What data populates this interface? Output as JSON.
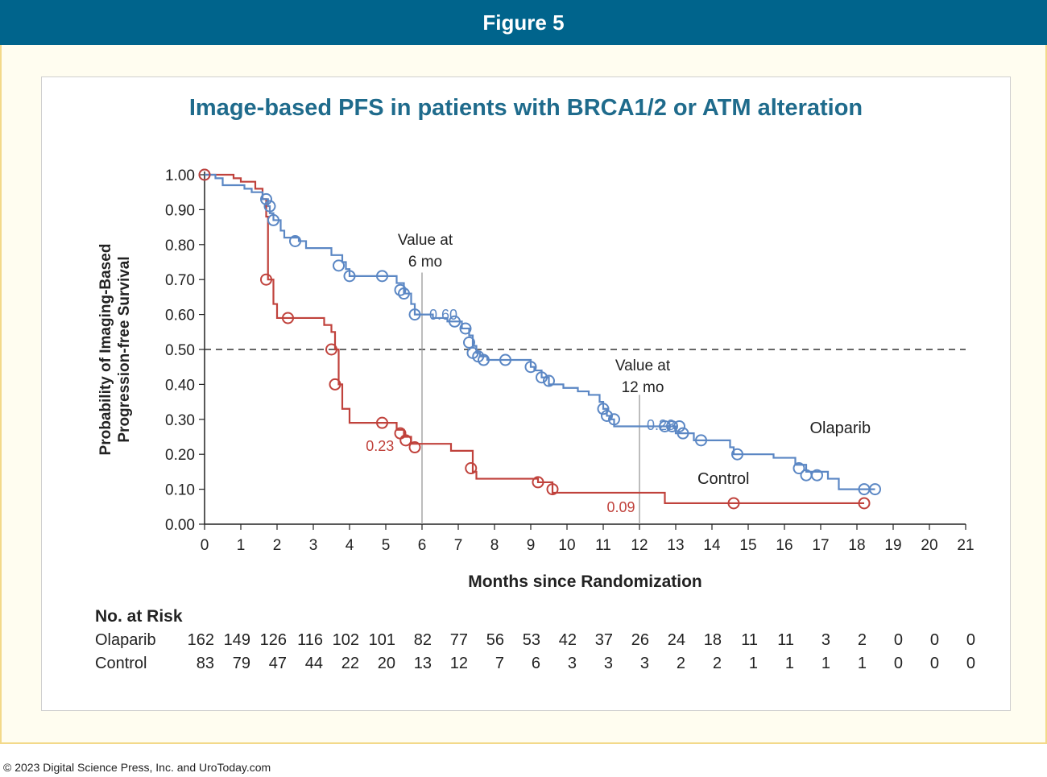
{
  "header": {
    "title": "Figure 5"
  },
  "footer": {
    "copyright": "© 2023 Digital Science Press, Inc. and UroToday.com"
  },
  "chart_data": {
    "type": "line",
    "subtype": "kaplan-meier step",
    "title": "Image-based PFS in patients with BRCA1/2 or ATM alteration",
    "xlabel": "Months since Randomization",
    "ylabel_lines": [
      "Probability of Imaging-Based",
      "Progression-free Survival"
    ],
    "xlim": [
      0,
      21
    ],
    "ylim": [
      0,
      1
    ],
    "xticks": [
      0,
      1,
      2,
      3,
      4,
      5,
      6,
      7,
      8,
      9,
      10,
      11,
      12,
      13,
      14,
      15,
      16,
      17,
      18,
      19,
      20,
      21
    ],
    "yticks": [
      {
        "value": 0.0,
        "label": "0.00"
      },
      {
        "value": 0.1,
        "label": "0.10"
      },
      {
        "value": 0.2,
        "label": "0.20"
      },
      {
        "value": 0.3,
        "label": "0.30"
      },
      {
        "value": 0.4,
        "label": "0.40"
      },
      {
        "value": 0.5,
        "label": "0.50"
      },
      {
        "value": 0.6,
        "label": "0.60"
      },
      {
        "value": 0.7,
        "label": "0.70"
      },
      {
        "value": 0.8,
        "label": "0.80"
      },
      {
        "value": 0.9,
        "label": "0.90"
      },
      {
        "value": 1.0,
        "label": "1.00"
      }
    ],
    "reference_line": {
      "y": 0.5,
      "style": "dashed"
    },
    "series": [
      {
        "name": "Olaparib",
        "color": "#5b87c4",
        "steps": [
          [
            0,
            1.0
          ],
          [
            0.3,
            0.99
          ],
          [
            0.5,
            0.97
          ],
          [
            1.1,
            0.96
          ],
          [
            1.3,
            0.95
          ],
          [
            1.6,
            0.93
          ],
          [
            1.75,
            0.91
          ],
          [
            1.8,
            0.89
          ],
          [
            1.9,
            0.87
          ],
          [
            2.1,
            0.84
          ],
          [
            2.2,
            0.82
          ],
          [
            2.6,
            0.81
          ],
          [
            2.8,
            0.79
          ],
          [
            3.5,
            0.77
          ],
          [
            3.8,
            0.75
          ],
          [
            3.9,
            0.73
          ],
          [
            4.0,
            0.71
          ],
          [
            5.3,
            0.69
          ],
          [
            5.5,
            0.66
          ],
          [
            5.7,
            0.63
          ],
          [
            5.8,
            0.6
          ],
          [
            6.3,
            0.59
          ],
          [
            6.7,
            0.58
          ],
          [
            7.1,
            0.56
          ],
          [
            7.3,
            0.54
          ],
          [
            7.4,
            0.51
          ],
          [
            7.5,
            0.49
          ],
          [
            7.6,
            0.48
          ],
          [
            7.8,
            0.47
          ],
          [
            9.0,
            0.45
          ],
          [
            9.1,
            0.44
          ],
          [
            9.3,
            0.42
          ],
          [
            9.5,
            0.4
          ],
          [
            9.9,
            0.39
          ],
          [
            10.3,
            0.38
          ],
          [
            10.6,
            0.37
          ],
          [
            10.9,
            0.35
          ],
          [
            11.0,
            0.33
          ],
          [
            11.1,
            0.31
          ],
          [
            11.2,
            0.3
          ],
          [
            11.3,
            0.28
          ],
          [
            12.7,
            0.28
          ],
          [
            13.0,
            0.26
          ],
          [
            13.5,
            0.24
          ],
          [
            14.5,
            0.22
          ],
          [
            14.6,
            0.2
          ],
          [
            15.7,
            0.19
          ],
          [
            16.3,
            0.17
          ],
          [
            16.6,
            0.15
          ],
          [
            17.2,
            0.13
          ],
          [
            17.5,
            0.1
          ],
          [
            18.5,
            0.1
          ]
        ],
        "censors": [
          [
            0,
            1.0
          ],
          [
            1.7,
            0.93
          ],
          [
            1.8,
            0.91
          ],
          [
            1.9,
            0.87
          ],
          [
            2.5,
            0.81
          ],
          [
            3.7,
            0.74
          ],
          [
            4.0,
            0.71
          ],
          [
            4.9,
            0.71
          ],
          [
            5.4,
            0.67
          ],
          [
            5.5,
            0.66
          ],
          [
            5.8,
            0.6
          ],
          [
            6.9,
            0.58
          ],
          [
            7.2,
            0.56
          ],
          [
            7.3,
            0.52
          ],
          [
            7.4,
            0.49
          ],
          [
            7.55,
            0.48
          ],
          [
            7.7,
            0.47
          ],
          [
            8.3,
            0.47
          ],
          [
            9.0,
            0.45
          ],
          [
            9.3,
            0.42
          ],
          [
            9.5,
            0.41
          ],
          [
            11.0,
            0.33
          ],
          [
            11.1,
            0.31
          ],
          [
            11.3,
            0.3
          ],
          [
            12.7,
            0.28
          ],
          [
            12.9,
            0.28
          ],
          [
            13.1,
            0.28
          ],
          [
            13.2,
            0.26
          ],
          [
            13.7,
            0.24
          ],
          [
            14.7,
            0.2
          ],
          [
            16.4,
            0.16
          ],
          [
            16.6,
            0.14
          ],
          [
            16.9,
            0.14
          ],
          [
            18.2,
            0.1
          ],
          [
            18.5,
            0.1
          ]
        ],
        "label_pos": [
          16.7,
          0.26
        ]
      },
      {
        "name": "Control",
        "color": "#c0423c",
        "steps": [
          [
            0,
            1.0
          ],
          [
            0.8,
            0.99
          ],
          [
            1.0,
            0.98
          ],
          [
            1.4,
            0.96
          ],
          [
            1.6,
            0.93
          ],
          [
            1.7,
            0.88
          ],
          [
            1.75,
            0.7
          ],
          [
            1.9,
            0.63
          ],
          [
            2.0,
            0.59
          ],
          [
            3.3,
            0.57
          ],
          [
            3.5,
            0.55
          ],
          [
            3.6,
            0.5
          ],
          [
            3.7,
            0.4
          ],
          [
            3.8,
            0.33
          ],
          [
            4.0,
            0.29
          ],
          [
            5.3,
            0.27
          ],
          [
            5.5,
            0.25
          ],
          [
            5.7,
            0.23
          ],
          [
            6.8,
            0.21
          ],
          [
            7.4,
            0.15
          ],
          [
            7.5,
            0.13
          ],
          [
            9.2,
            0.12
          ],
          [
            9.6,
            0.09
          ],
          [
            12.7,
            0.06
          ],
          [
            18.2,
            0.06
          ]
        ],
        "censors": [
          [
            0,
            1.0
          ],
          [
            1.7,
            0.7
          ],
          [
            2.3,
            0.59
          ],
          [
            3.5,
            0.5
          ],
          [
            3.6,
            0.4
          ],
          [
            4.9,
            0.29
          ],
          [
            5.4,
            0.26
          ],
          [
            5.55,
            0.24
          ],
          [
            5.8,
            0.22
          ],
          [
            7.35,
            0.16
          ],
          [
            9.2,
            0.12
          ],
          [
            9.6,
            0.1
          ],
          [
            14.6,
            0.06
          ],
          [
            18.2,
            0.06
          ]
        ],
        "label_pos": [
          13.6,
          0.115
        ]
      }
    ],
    "landmarks": [
      {
        "month": 6,
        "label_lines": [
          "Value at",
          "6 mo"
        ],
        "olaparib": "0.60",
        "control": "0.23"
      },
      {
        "month": 12,
        "label_lines": [
          "Value at",
          "12 mo"
        ],
        "olaparib": "0.28",
        "control": "0.09"
      }
    ],
    "risk_table": {
      "heading": "No. at Risk",
      "rows": [
        {
          "label": "Olaparib",
          "values": [
            "162",
            "149",
            "126",
            "116",
            "102",
            "101",
            "82",
            "77",
            "56",
            "53",
            "42",
            "37",
            "26",
            "24",
            "18",
            "11",
            "11",
            "3",
            "2",
            "0",
            "0",
            "0"
          ]
        },
        {
          "label": "Control",
          "values": [
            "83",
            "79",
            "47",
            "44",
            "22",
            "20",
            "13",
            "12",
            "7",
            "6",
            "3",
            "3",
            "3",
            "2",
            "2",
            "1",
            "1",
            "1",
            "1",
            "0",
            "0",
            "0"
          ]
        }
      ]
    }
  }
}
